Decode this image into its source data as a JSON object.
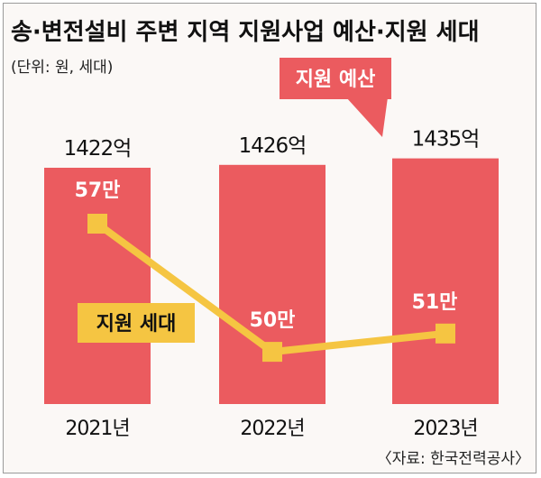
{
  "title": "송·변전설비 주변 지역 지원사업 예산·지원 세대",
  "unit_note": "(단위: 원, 세대)",
  "source": "〈자료: 한국전력공사〉",
  "colors": {
    "bar": "#eb5b5f",
    "line": "#f5c542",
    "background": "#fbf8f6",
    "frame": "#9a9a9a"
  },
  "chart_data": {
    "type": "bar",
    "categories": [
      "2021년",
      "2022년",
      "2023년"
    ],
    "series": [
      {
        "name": "지원 예산",
        "type": "bar",
        "values": [
          1422,
          1426,
          1435
        ],
        "labels": [
          "1422억",
          "1426억",
          "1435억"
        ]
      },
      {
        "name": "지원 세대",
        "type": "line",
        "values": [
          57,
          50,
          51
        ],
        "labels": [
          "57만",
          "50만",
          "51만"
        ]
      }
    ],
    "legend": [
      "지원 예산",
      "지원 세대"
    ],
    "grid": false
  }
}
